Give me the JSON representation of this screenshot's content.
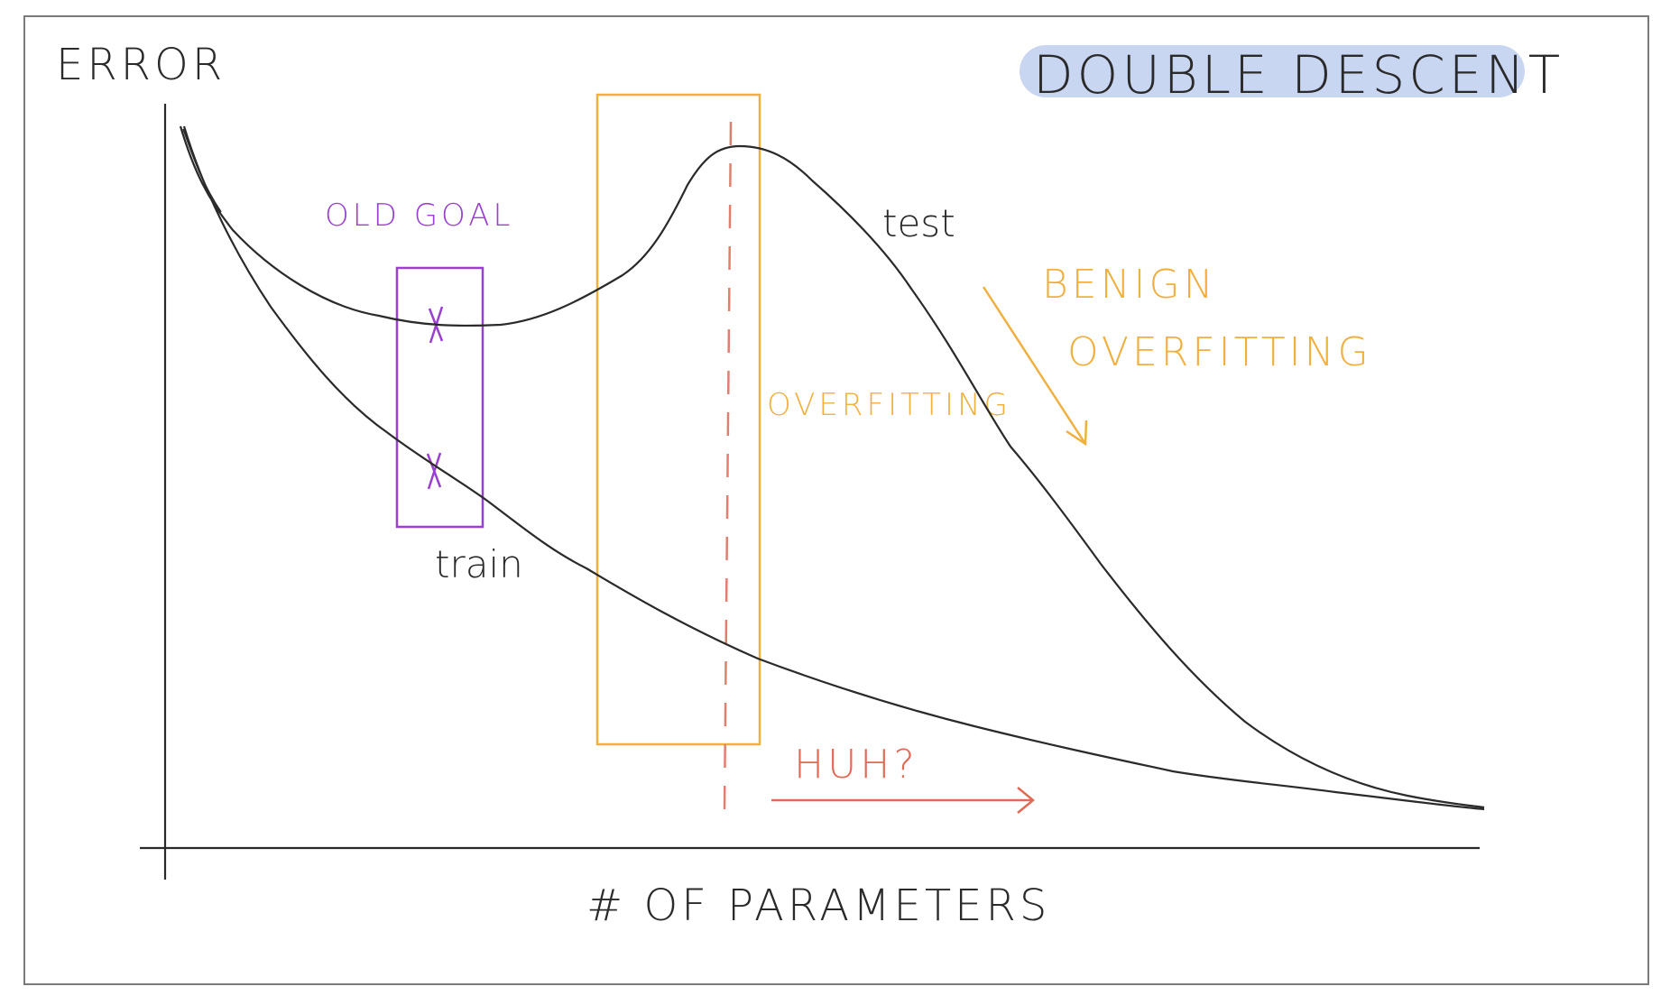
{
  "title": "DOUBLE DESCENT",
  "y_axis_label": "ERROR",
  "x_axis_label": "# OF PARAMETERS",
  "curve_labels": {
    "test": "test",
    "train": "train"
  },
  "annotations": {
    "old_goal": "OLD GOAL",
    "overfitting": "OVERFITTING",
    "benign_line1": "BENIGN",
    "benign_line2": "OVERFITTING",
    "huh": "HUH?"
  },
  "colors": {
    "ink": "#2a2a2a",
    "title_highlight": "#c9d6f2",
    "old_goal": "#9b3fd0",
    "overfitting": "#f0b040",
    "huh": "#e06a55",
    "dashed_line": "#e07f6f"
  }
}
